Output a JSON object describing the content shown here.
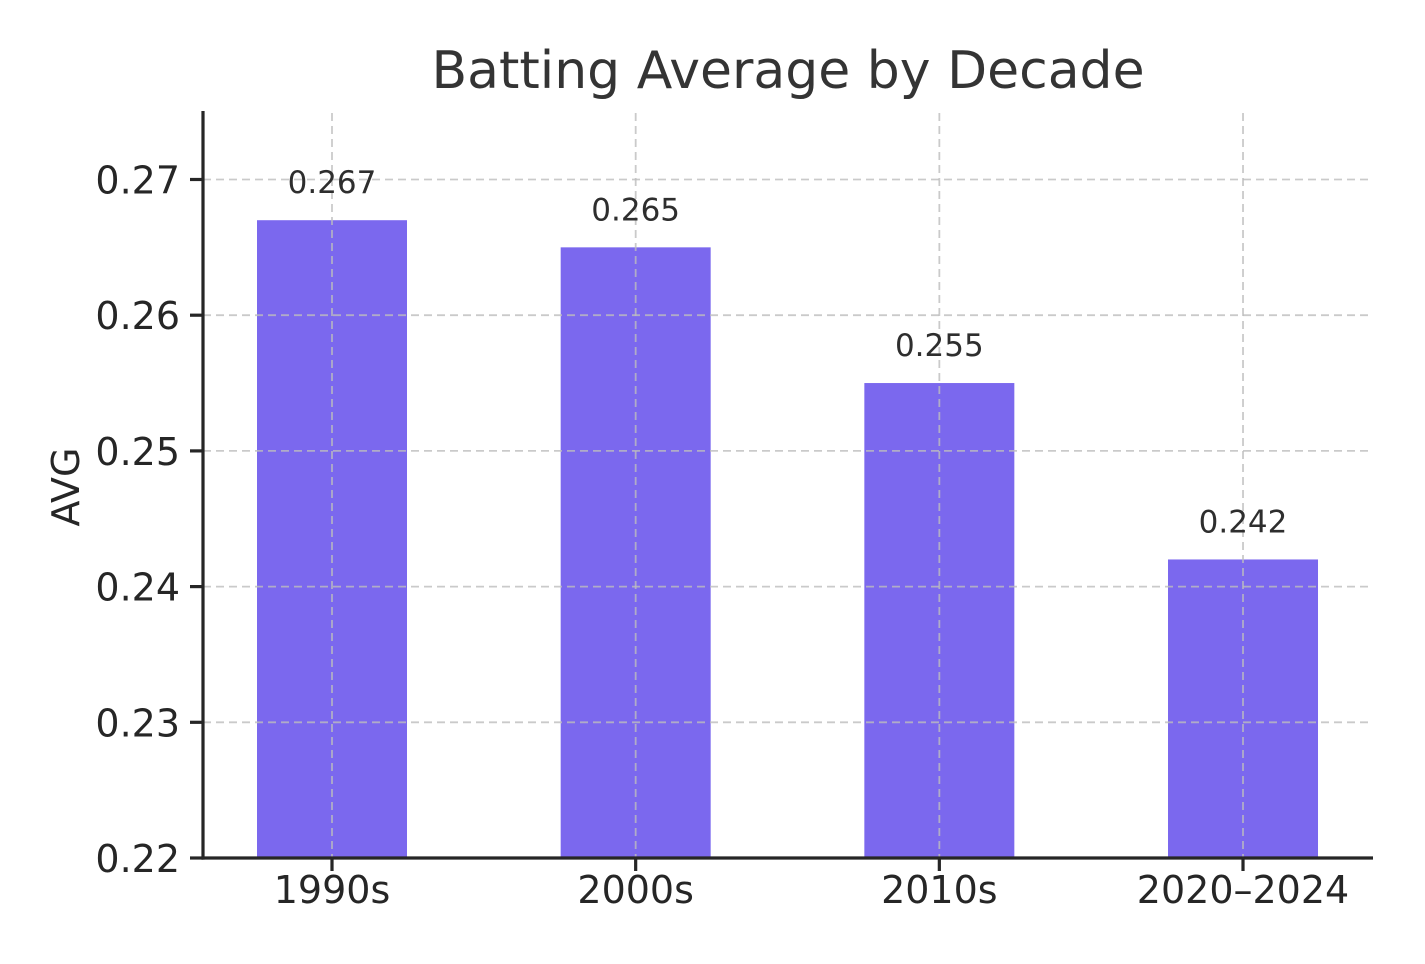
{
  "figure": {
    "background": "#ffffff"
  },
  "chart_data": {
    "type": "bar",
    "title": "Batting Average by Decade",
    "xlabel": "",
    "ylabel": "AVG",
    "categories": [
      "1990s",
      "2000s",
      "2010s",
      "2020–2024"
    ],
    "values": [
      0.267,
      0.265,
      0.255,
      0.242
    ],
    "bar_value_labels": [
      "0.267",
      "0.265",
      "0.255",
      "0.242"
    ],
    "ytick_values": [
      0.22,
      0.23,
      0.24,
      0.25,
      0.26,
      0.27
    ],
    "ytick_labels": [
      "0.22",
      "0.23",
      "0.24",
      "0.25",
      "0.26",
      "0.27"
    ],
    "ylim": [
      0.22,
      0.2749
    ],
    "grid": "on",
    "grid_style": "dashed",
    "grid_axes": "both",
    "legend_position": "none",
    "colors": {
      "bar_fill": "#7B68EE",
      "grid_line": "#bebebe",
      "spine": "#262626",
      "tick_label": "#262626",
      "bar_label": "#2e2e2e",
      "title": "#343434"
    }
  }
}
